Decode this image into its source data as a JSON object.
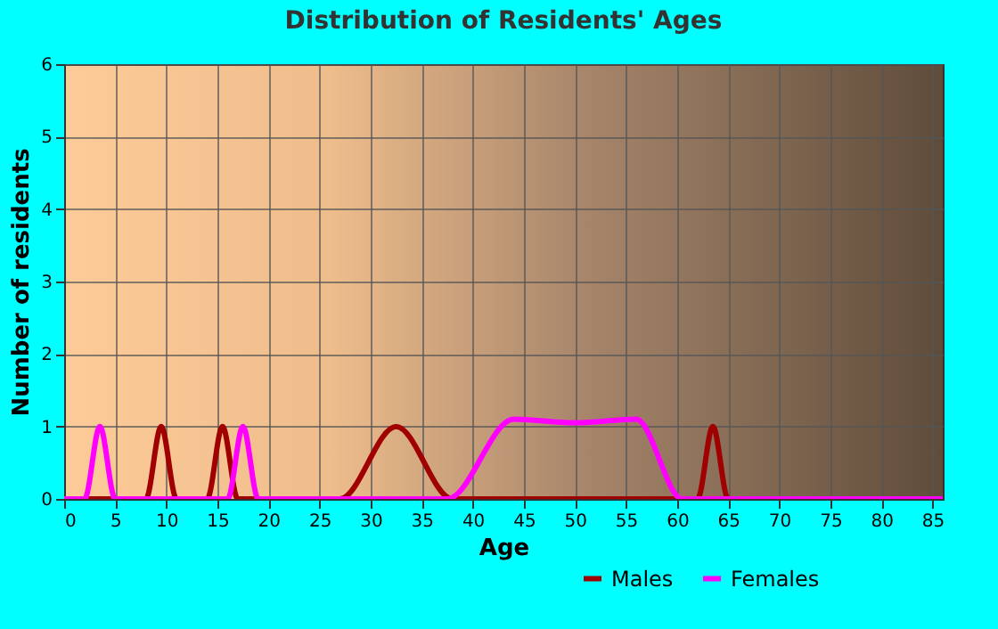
{
  "chart_data": {
    "type": "line",
    "title": "Distribution of Residents' Ages",
    "xlabel": "Age",
    "ylabel": "Number of residents",
    "xlim": [
      0,
      86
    ],
    "xticks": [
      0,
      5,
      10,
      15,
      20,
      25,
      30,
      35,
      40,
      45,
      50,
      55,
      60,
      65,
      70,
      75,
      80,
      85
    ],
    "ylim": [
      0,
      6
    ],
    "yticks": [
      0,
      1,
      2,
      3,
      4,
      5,
      6
    ],
    "grid": true,
    "legend": "bottom right",
    "marker": "none",
    "line_style": "solid",
    "series": [
      {
        "name": "Males",
        "color": "#a00000",
        "x": [
          0,
          8,
          9.5,
          11,
          14,
          15.5,
          17,
          27,
          32.5,
          38,
          62,
          63.5,
          65,
          86
        ],
        "values": [
          0,
          0,
          1,
          0,
          0,
          1,
          0,
          0,
          1,
          0,
          0,
          1,
          0,
          0
        ]
      },
      {
        "name": "Females",
        "color": "#ff00ff",
        "x": [
          0,
          2,
          3.5,
          5,
          16,
          17.5,
          19,
          37.5,
          44,
          50,
          56,
          60.5,
          86
        ],
        "values": [
          0,
          0,
          1,
          0,
          0,
          1,
          0,
          0,
          1.1,
          1.05,
          1.1,
          0,
          0
        ]
      }
    ]
  }
}
